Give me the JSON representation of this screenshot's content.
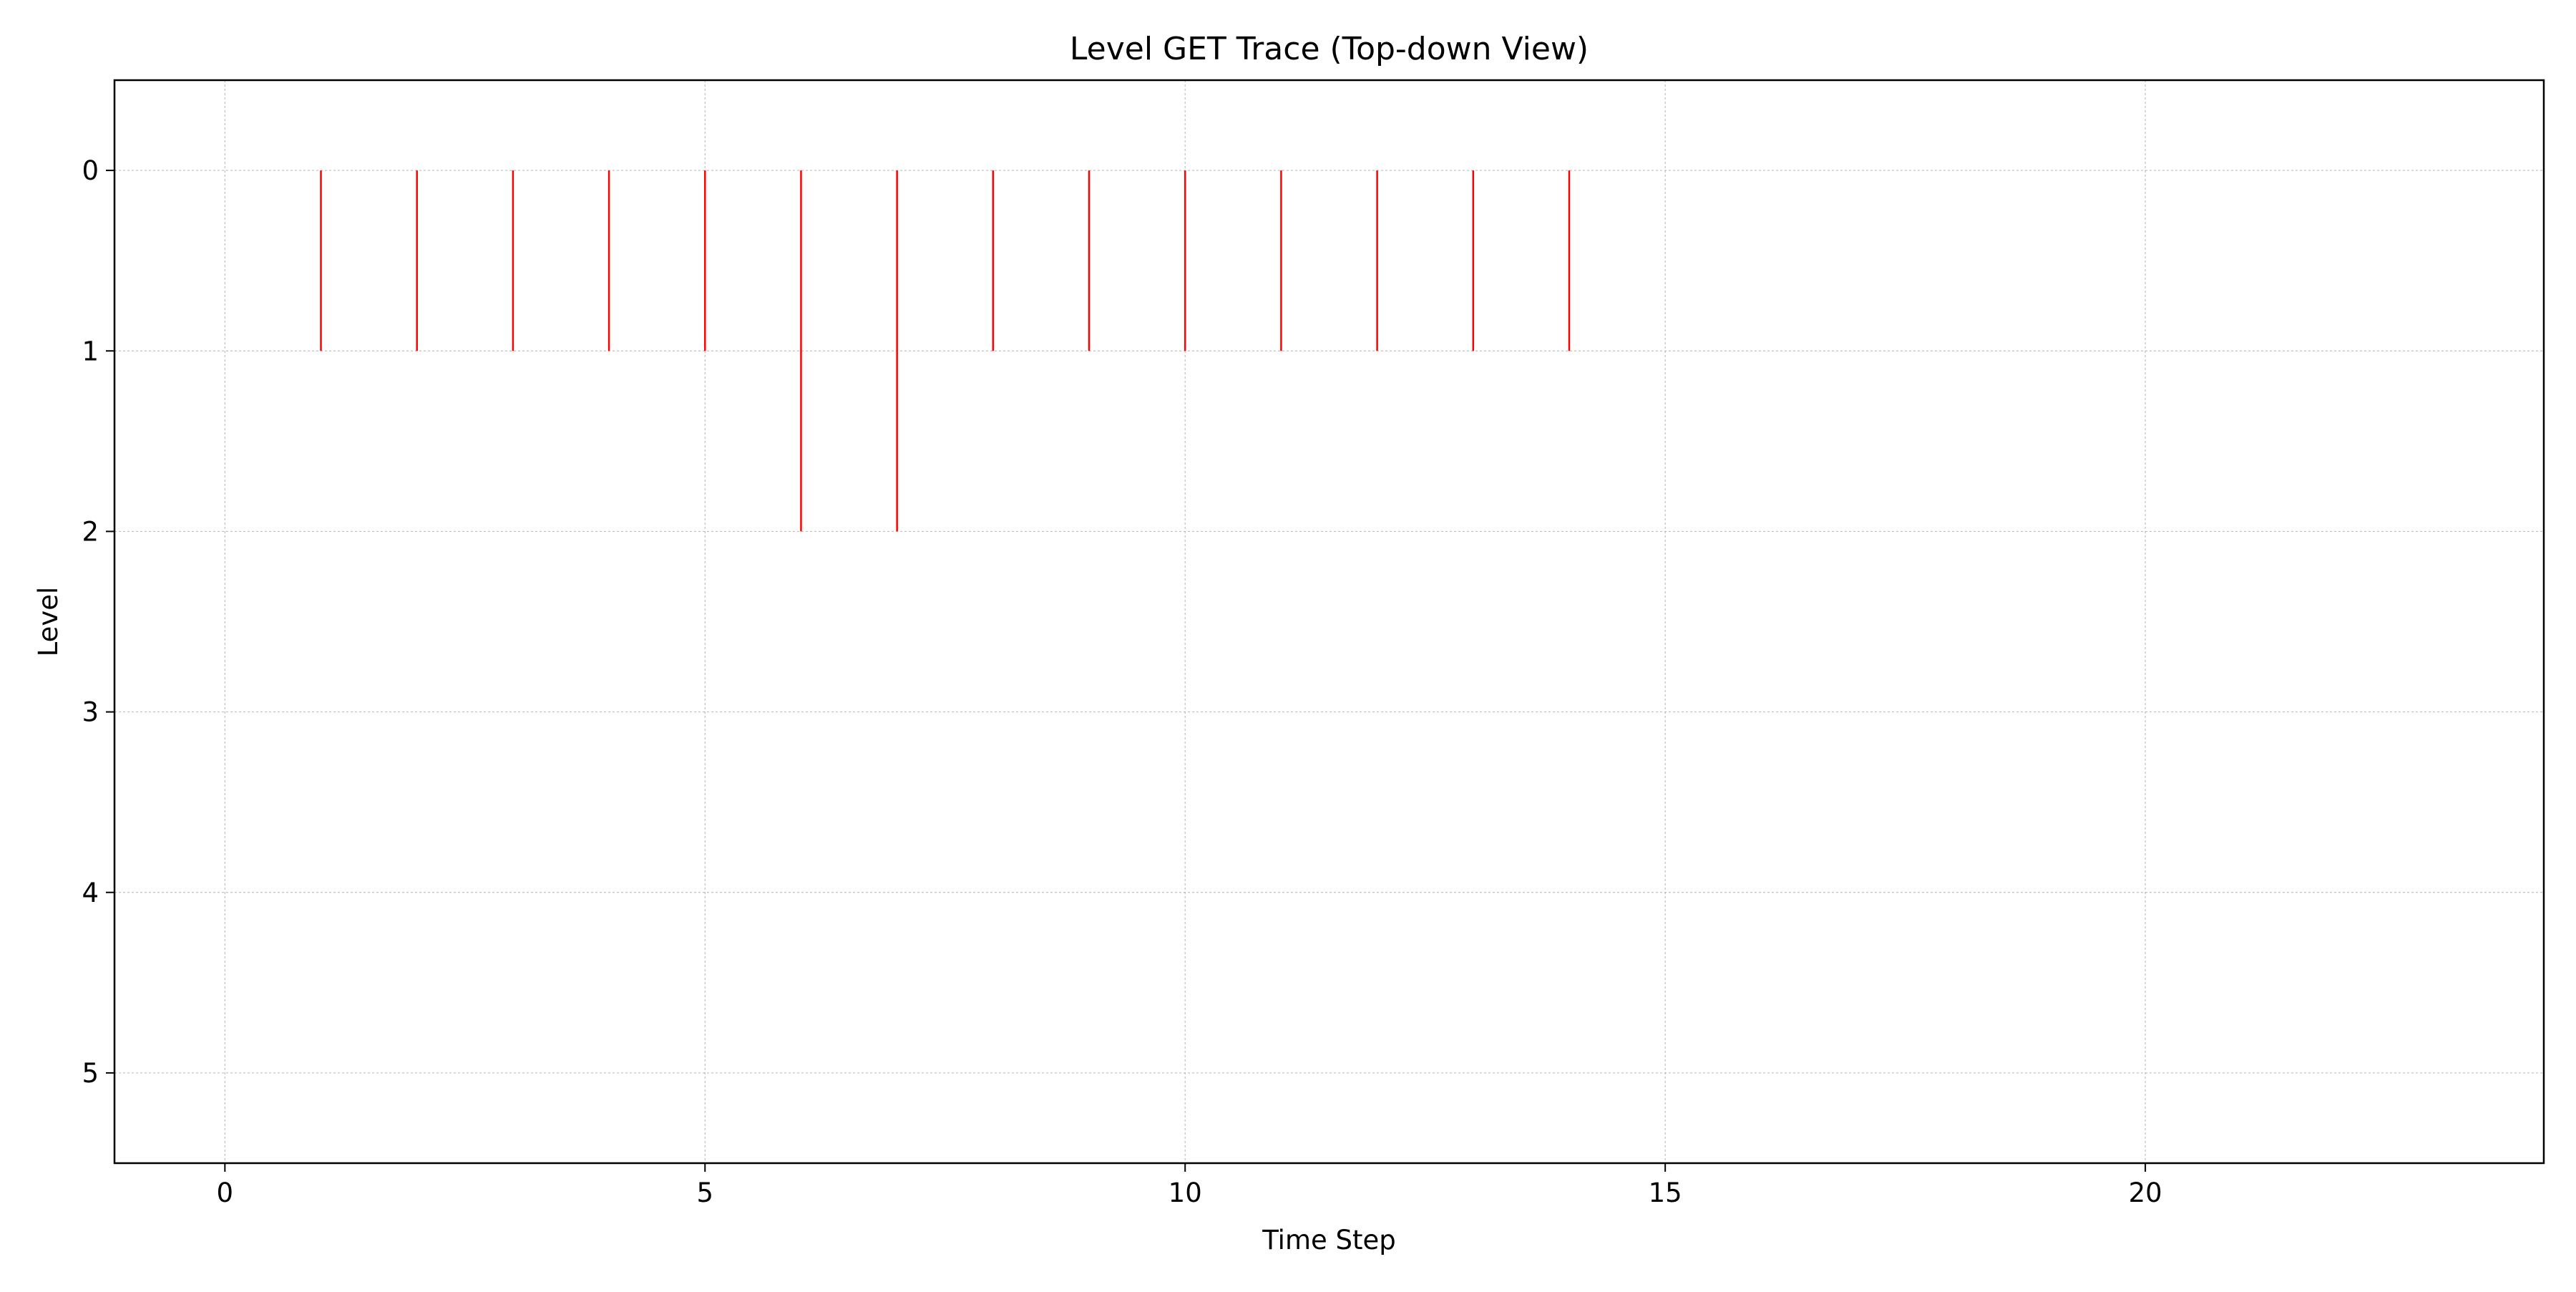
{
  "chart_data": {
    "type": "line",
    "title": "Level GET Trace (Top-down View)",
    "xlabel": "Time Step",
    "ylabel": "Level",
    "xlim": [
      -1.15,
      24.15
    ],
    "ylim": [
      5.5,
      -0.5
    ],
    "y_inverted": true,
    "x_ticks": [
      0,
      5,
      10,
      15,
      20
    ],
    "y_ticks": [
      0,
      1,
      2,
      3,
      4,
      5
    ],
    "grid": true,
    "legend": "none",
    "series_color": "#ff0000",
    "grid_color": "#b0b0b0",
    "segments": [
      {
        "x": 1,
        "y_start": 0,
        "y_end": 1
      },
      {
        "x": 2,
        "y_start": 0,
        "y_end": 1
      },
      {
        "x": 3,
        "y_start": 0,
        "y_end": 1
      },
      {
        "x": 4,
        "y_start": 0,
        "y_end": 1
      },
      {
        "x": 5,
        "y_start": 0,
        "y_end": 1
      },
      {
        "x": 6,
        "y_start": 0,
        "y_end": 2
      },
      {
        "x": 7,
        "y_start": 0,
        "y_end": 2
      },
      {
        "x": 8,
        "y_start": 0,
        "y_end": 1
      },
      {
        "x": 9,
        "y_start": 0,
        "y_end": 1
      },
      {
        "x": 10,
        "y_start": 0,
        "y_end": 1
      },
      {
        "x": 11,
        "y_start": 0,
        "y_end": 1
      },
      {
        "x": 12,
        "y_start": 0,
        "y_end": 1
      },
      {
        "x": 13,
        "y_start": 0,
        "y_end": 1
      },
      {
        "x": 14,
        "y_start": 0,
        "y_end": 1
      }
    ]
  }
}
